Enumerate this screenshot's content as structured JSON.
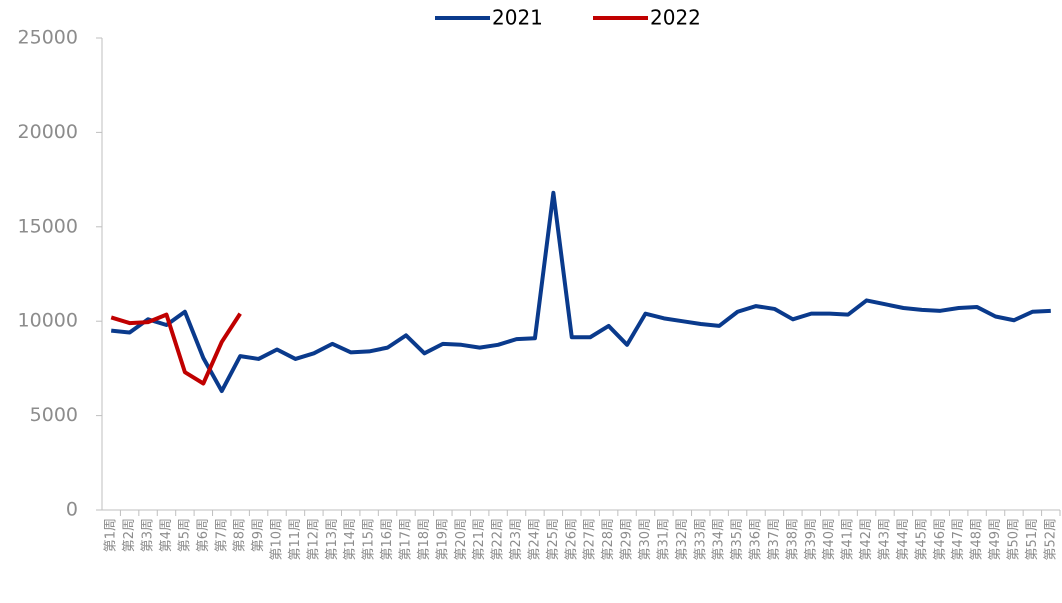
{
  "chart_data": {
    "type": "line",
    "categories": [
      "第1周",
      "第2周",
      "第3周",
      "第4周",
      "第5周",
      "第6周",
      "第7周",
      "第8周",
      "第9周",
      "第10周",
      "第11周",
      "第12周",
      "第13周",
      "第14周",
      "第15周",
      "第16周",
      "第17周",
      "第18周",
      "第19周",
      "第20周",
      "第21周",
      "第22周",
      "第23周",
      "第24周",
      "第25周",
      "第26周",
      "第27周",
      "第28周",
      "第29周",
      "第30周",
      "第31周",
      "第32周",
      "第33周",
      "第34周",
      "第35周",
      "第36周",
      "第37周",
      "第38周",
      "第39周",
      "第40周",
      "第41周",
      "第42周",
      "第43周",
      "第44周",
      "第45周",
      "第46周",
      "第47周",
      "第48周",
      "第49周",
      "第50周",
      "第51周",
      "第52周"
    ],
    "series": [
      {
        "name": "2021",
        "color": "#0a3a8c",
        "values": [
          9500,
          9400,
          10100,
          9800,
          10500,
          8050,
          6300,
          8150,
          8000,
          8500,
          8000,
          8300,
          8800,
          8350,
          8400,
          8600,
          9250,
          8300,
          8800,
          8750,
          8600,
          8750,
          9050,
          9100,
          16800,
          9150,
          9150,
          9750,
          8750,
          10400,
          10150,
          10000,
          9850,
          9750,
          10500,
          10800,
          10650,
          10100,
          10400,
          10400,
          10350,
          11100,
          10900,
          10700,
          10600,
          10550,
          10700,
          10750,
          10250,
          10050,
          10500,
          10550
        ]
      },
      {
        "name": "2022",
        "color": "#c00000",
        "values": [
          10200,
          9900,
          9950,
          10350,
          7300,
          6700,
          8900,
          10400,
          null,
          null,
          null,
          null,
          null,
          null,
          null,
          null,
          null,
          null,
          null,
          null,
          null,
          null,
          null,
          null,
          null,
          null,
          null,
          null,
          null,
          null,
          null,
          null,
          null,
          null,
          null,
          null,
          null,
          null,
          null,
          null,
          null,
          null,
          null,
          null,
          null,
          null,
          null,
          null,
          null,
          null,
          null,
          null
        ]
      }
    ],
    "ylim": [
      0,
      25000
    ],
    "yticks": [
      0,
      5000,
      10000,
      15000,
      20000,
      25000
    ],
    "legend": "top"
  }
}
